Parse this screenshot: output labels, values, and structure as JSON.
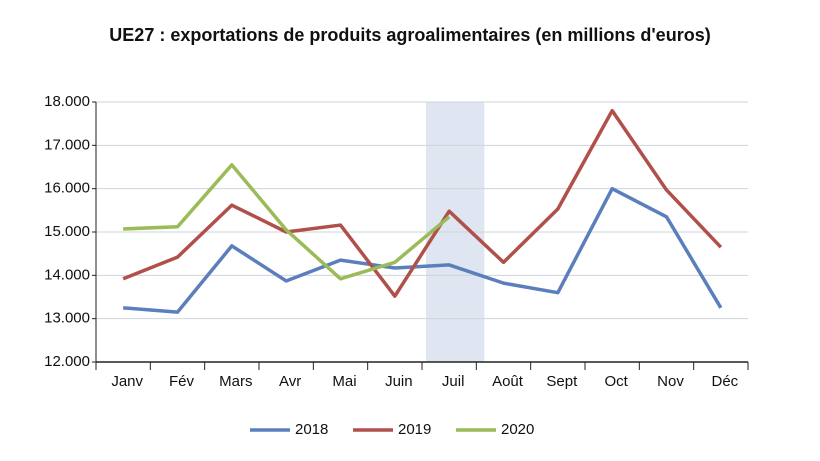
{
  "chart_data": {
    "type": "line",
    "title": "UE27 : exportations de produits agroalimentaires (en millions d'euros)",
    "categories": [
      "Janv",
      "Fév",
      "Mars",
      "Avr",
      "Mai",
      "Juin",
      "Juil",
      "Août",
      "Sept",
      "Oct",
      "Nov",
      "Déc"
    ],
    "series": [
      {
        "name": "2018",
        "color": "#5b7fbd",
        "values": [
          13250,
          13150,
          14680,
          13870,
          14350,
          14170,
          14240,
          13820,
          13600,
          16000,
          15350,
          13250
        ]
      },
      {
        "name": "2019",
        "color": "#b0504a",
        "values": [
          13920,
          14420,
          15620,
          15000,
          15160,
          13520,
          15480,
          14300,
          15530,
          17800,
          15970,
          14650
        ]
      },
      {
        "name": "2020",
        "color": "#9bbb59",
        "values": [
          15070,
          15120,
          16550,
          15050,
          13920,
          14300,
          15350,
          null,
          null,
          null,
          null,
          null
        ]
      }
    ],
    "ylim": [
      12000,
      18000
    ],
    "yticks": [
      {
        "value": 12000,
        "label": "12.000"
      },
      {
        "value": 13000,
        "label": "13.000"
      },
      {
        "value": 14000,
        "label": "14.000"
      },
      {
        "value": 15000,
        "label": "15.000"
      },
      {
        "value": 16000,
        "label": "16.000"
      },
      {
        "value": 17000,
        "label": "17.000"
      },
      {
        "value": 18000,
        "label": "18.000"
      }
    ],
    "grid": true,
    "highlight_index": 6,
    "highlight_color": "#dfe5f1",
    "legend": "bottom"
  }
}
